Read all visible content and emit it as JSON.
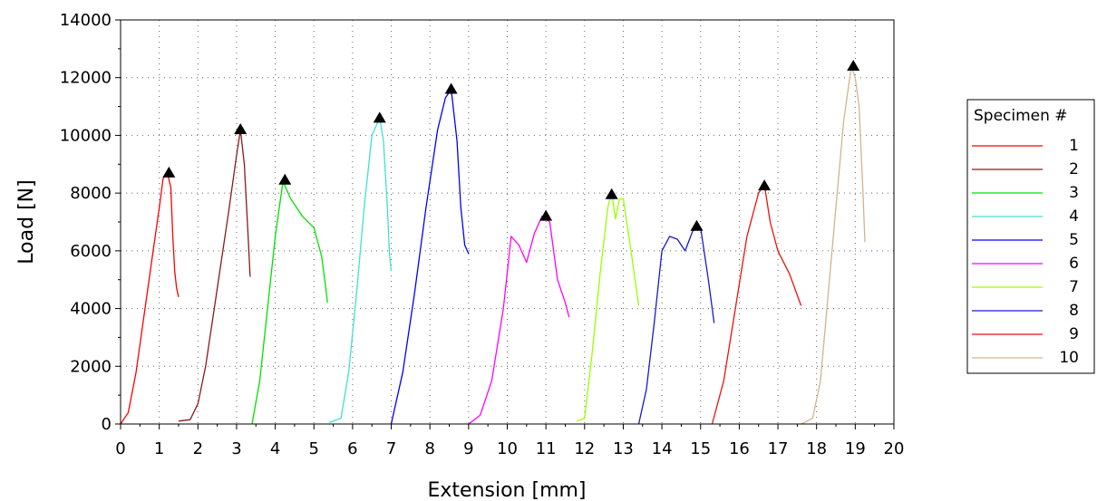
{
  "chart_data": {
    "type": "line",
    "title": "",
    "xlabel": "Extension [mm]",
    "ylabel": "Load [N]",
    "xlim": [
      0,
      20
    ],
    "ylim": [
      0,
      14000
    ],
    "xticks": [
      0,
      1,
      2,
      3,
      4,
      5,
      6,
      7,
      8,
      9,
      10,
      11,
      12,
      13,
      14,
      15,
      16,
      17,
      18,
      19,
      20
    ],
    "yticks": [
      0,
      2000,
      4000,
      6000,
      8000,
      10000,
      12000,
      14000
    ],
    "grid": "dotted",
    "legend": {
      "title": "Specimen #",
      "placement": "right"
    },
    "series": [
      {
        "name": "1",
        "color": "#ff0000",
        "x": [
          0,
          0.2,
          0.4,
          0.6,
          0.8,
          1.0,
          1.1,
          1.2,
          1.3,
          1.35,
          1.4,
          1.45,
          1.5
        ],
        "y": [
          0,
          400,
          1800,
          3700,
          5600,
          7500,
          8500,
          8750,
          8200,
          6500,
          5300,
          4700,
          4400
        ],
        "peak": [
          1.25,
          8700
        ]
      },
      {
        "name": "2",
        "color": "#8b1a1a",
        "x": [
          1.5,
          1.8,
          2.0,
          2.2,
          2.4,
          2.6,
          2.8,
          3.0,
          3.1,
          3.2,
          3.3,
          3.35
        ],
        "y": [
          100,
          150,
          700,
          2000,
          3800,
          5600,
          7400,
          9300,
          10200,
          9000,
          6500,
          5100
        ],
        "peak": [
          3.1,
          10200
        ]
      },
      {
        "name": "3",
        "color": "#00e000",
        "x": [
          3.4,
          3.6,
          3.8,
          4.0,
          4.2,
          4.4,
          4.7,
          5.0,
          5.2,
          5.3,
          5.35
        ],
        "y": [
          0,
          1500,
          4000,
          6500,
          8400,
          7800,
          7200,
          6800,
          5800,
          4800,
          4200
        ],
        "peak": [
          4.25,
          8450
        ]
      },
      {
        "name": "4",
        "color": "#40e0d0",
        "x": [
          5.4,
          5.7,
          5.9,
          6.1,
          6.3,
          6.5,
          6.7,
          6.8,
          6.9,
          6.95,
          7.0
        ],
        "y": [
          50,
          200,
          1800,
          4500,
          7500,
          10000,
          10600,
          9800,
          7500,
          6000,
          5300
        ],
        "peak": [
          6.7,
          10600
        ]
      },
      {
        "name": "5",
        "color": "#0000ff",
        "x": [
          7.0,
          7.3,
          7.6,
          7.9,
          8.2,
          8.4,
          8.55,
          8.7,
          8.8,
          8.9,
          9.0
        ],
        "y": [
          0,
          1800,
          4500,
          7500,
          10200,
          11300,
          11600,
          9800,
          7500,
          6200,
          5900
        ],
        "peak": [
          8.55,
          11600
        ]
      },
      {
        "name": "6",
        "color": "#ff00ff",
        "x": [
          9.0,
          9.3,
          9.6,
          9.9,
          10.1,
          10.3,
          10.5,
          10.7,
          10.9,
          11.1,
          11.3,
          11.5,
          11.6
        ],
        "y": [
          0,
          300,
          1500,
          4000,
          6500,
          6200,
          5600,
          6600,
          7200,
          7000,
          5000,
          4200,
          3700
        ],
        "peak": [
          11.0,
          7200
        ]
      },
      {
        "name": "7",
        "color": "#99ff00",
        "x": [
          11.8,
          12.0,
          12.2,
          12.4,
          12.6,
          12.7,
          12.8,
          12.9,
          13.0,
          13.2,
          13.4
        ],
        "y": [
          100,
          200,
          2500,
          5200,
          7500,
          8000,
          7100,
          7800,
          7800,
          6000,
          4100
        ],
        "peak": [
          12.7,
          7950
        ]
      },
      {
        "name": "8",
        "color": "#1a1acc",
        "x": [
          13.4,
          13.6,
          13.8,
          14.0,
          14.2,
          14.4,
          14.6,
          14.8,
          15.0,
          15.2,
          15.35
        ],
        "y": [
          0,
          1200,
          3500,
          6000,
          6500,
          6400,
          6000,
          6700,
          6800,
          5000,
          3500
        ],
        "peak": [
          14.9,
          6850
        ]
      },
      {
        "name": "9",
        "color": "#ee1111",
        "x": [
          15.3,
          15.6,
          15.9,
          16.2,
          16.5,
          16.65,
          16.8,
          17.0,
          17.3,
          17.6
        ],
        "y": [
          0,
          1500,
          4000,
          6500,
          8000,
          8300,
          7000,
          6000,
          5200,
          4100
        ],
        "peak": [
          16.65,
          8250
        ]
      },
      {
        "name": "10",
        "color": "#d2b48c",
        "x": [
          17.6,
          17.9,
          18.1,
          18.3,
          18.5,
          18.7,
          18.9,
          19.0,
          19.1,
          19.2,
          19.25
        ],
        "y": [
          0,
          200,
          1500,
          4500,
          7500,
          10500,
          12400,
          12000,
          11000,
          8000,
          6300
        ],
        "peak": [
          18.95,
          12400
        ]
      }
    ]
  }
}
